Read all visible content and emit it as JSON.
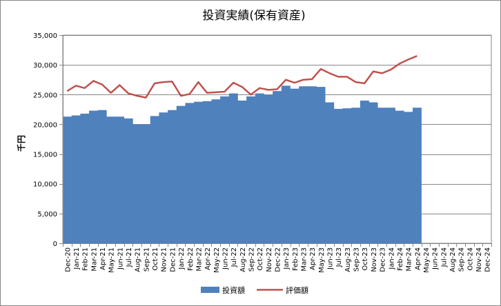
{
  "chart_data": {
    "type": "bar",
    "title": "投資実績(保有資産)",
    "ylabel": "千円",
    "xlabel": "",
    "ylim": [
      0,
      35000
    ],
    "yticks": [
      0,
      5000,
      10000,
      15000,
      20000,
      25000,
      30000,
      35000
    ],
    "ytick_labels": [
      "0",
      "5,000",
      "10,000",
      "15,000",
      "20,000",
      "25,000",
      "30,000",
      "35,000"
    ],
    "grid": true,
    "legend_position": "bottom",
    "categories": [
      "Dec-20",
      "Jan-21",
      "Feb-21",
      "Mar-21",
      "Apr-21",
      "May-21",
      "Jun-21",
      "Jul-21",
      "Aug-21",
      "Sep-21",
      "Oct-21",
      "Nov-21",
      "Dec-21",
      "Jan-22",
      "Feb-22",
      "Mar-22",
      "Apr-22",
      "May-22",
      "Jun-22",
      "Jul-22",
      "Aug-22",
      "Sep-22",
      "Oct-22",
      "Nov-22",
      "Dec-22",
      "Jan-23",
      "Feb-23",
      "Mar-23",
      "Apr-23",
      "May-23",
      "Jun-23",
      "Jul-23",
      "Aug-23",
      "Sep-23",
      "Oct-23",
      "Nov-23",
      "Dec-23",
      "Jan-24",
      "Feb-24",
      "Mar-24",
      "Apr-24",
      "May-24",
      "Jun-24",
      "Jul-24",
      "Aug-24",
      "Sep-24",
      "Oct-24",
      "Nov-24",
      "Dec-24"
    ],
    "series": [
      {
        "name": "投資額",
        "kind": "bar",
        "color": "#4f81bd",
        "values": [
          21300,
          21500,
          21800,
          22300,
          22400,
          21300,
          21300,
          21000,
          20000,
          20000,
          21400,
          22000,
          22400,
          23100,
          23600,
          23800,
          23900,
          24200,
          24700,
          25200,
          24000,
          24700,
          25200,
          25000,
          25600,
          26500,
          26000,
          26400,
          26400,
          26300,
          23700,
          22600,
          22700,
          22800,
          24000,
          23700,
          22800,
          22800,
          22300,
          22100,
          22800,
          null,
          null,
          null,
          null,
          null,
          null,
          null,
          null
        ]
      },
      {
        "name": "評価額",
        "kind": "line",
        "color": "#c0504d",
        "values": [
          25600,
          26500,
          26100,
          27300,
          26700,
          25300,
          26600,
          25200,
          24800,
          24500,
          26900,
          27100,
          27200,
          24800,
          25100,
          27100,
          25300,
          25400,
          25500,
          27000,
          26300,
          25000,
          26100,
          25800,
          25900,
          27500,
          27000,
          27500,
          27600,
          29300,
          28600,
          28000,
          28000,
          27100,
          26900,
          28900,
          28600,
          29200,
          30200,
          30900,
          31500,
          null,
          null,
          null,
          null,
          null,
          null,
          null,
          null
        ]
      }
    ]
  }
}
